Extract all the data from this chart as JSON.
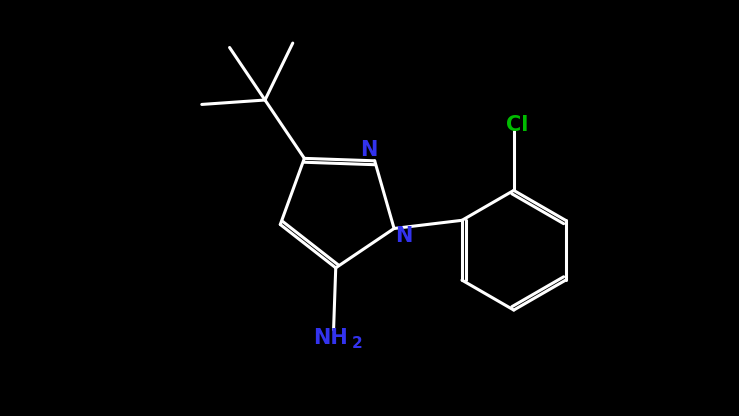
{
  "bg_color": "#000000",
  "bond_color": "#FFFFFF",
  "N_color": "#3333EE",
  "Cl_color": "#00BB00",
  "lw": 2.2,
  "dbl_off": 0.055,
  "N_fs": 15,
  "Cl_fs": 15,
  "sub_fs": 11,
  "xlim": [
    0.0,
    10.5
  ],
  "ylim": [
    0.0,
    5.8
  ]
}
